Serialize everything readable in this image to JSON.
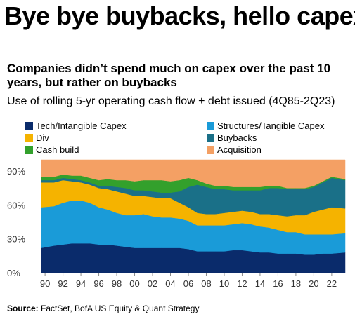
{
  "headline": "Bye bye buybacks, hello capex",
  "subtitle": "Companies didn’t spend much on capex over the past 10 years, but rather on buybacks",
  "source_label": "Source:",
  "source_text": " FactSet, BofA US Equity & Quant Strategy",
  "chart_data": {
    "type": "area",
    "title": "Use of rolling 5-yr operating cash flow + debt issued (4Q85-2Q23)",
    "xlabel": "",
    "ylabel": "",
    "stacked": true,
    "ylim": [
      0,
      100
    ],
    "yticks": [
      0,
      30,
      60,
      90
    ],
    "ytick_labels": [
      "0%",
      "30%",
      "60%",
      "90%"
    ],
    "xticks": [
      1990,
      1992,
      1994,
      1996,
      1998,
      2000,
      2002,
      2004,
      2006,
      2008,
      2010,
      2012,
      2014,
      2016,
      2018,
      2020,
      2022
    ],
    "xtick_labels": [
      "90",
      "92",
      "94",
      "96",
      "98",
      "00",
      "02",
      "04",
      "06",
      "08",
      "10",
      "12",
      "14",
      "16",
      "18",
      "20",
      "22"
    ],
    "xlim": [
      1989.6,
      2023.5
    ],
    "grid": false,
    "legend_position": "top",
    "x": [
      1989.6,
      1991,
      1992,
      1993,
      1994,
      1995,
      1996,
      1997,
      1998,
      1999,
      2000,
      2001,
      2002,
      2003,
      2004,
      2005,
      2006,
      2007,
      2008,
      2009,
      2010,
      2011,
      2012,
      2013,
      2014,
      2015,
      2016,
      2017,
      2018,
      2019,
      2020,
      2021,
      2022,
      2023.5
    ],
    "series": [
      {
        "name": "Tech/Intangible Capex",
        "color": "#0a2b6b",
        "values": [
          22,
          24,
          25,
          26,
          26,
          26,
          25,
          25,
          24,
          23,
          22,
          22,
          22,
          22,
          22,
          22,
          21,
          19,
          19,
          19,
          19,
          20,
          20,
          19,
          18,
          18,
          17,
          17,
          17,
          16,
          16,
          17,
          17,
          18
        ]
      },
      {
        "name": "Structures/Tangible Capex",
        "color": "#1a9bd8",
        "values": [
          36,
          35,
          37,
          38,
          38,
          36,
          33,
          31,
          29,
          28,
          29,
          30,
          28,
          27,
          27,
          26,
          25,
          23,
          23,
          23,
          23,
          23,
          24,
          24,
          23,
          22,
          21,
          19,
          19,
          18,
          18,
          17,
          17,
          17
        ]
      },
      {
        "name": "Div",
        "color": "#f5b300",
        "values": [
          22,
          21,
          20,
          17,
          16,
          16,
          17,
          18,
          19,
          19,
          17,
          16,
          17,
          17,
          17,
          14,
          12,
          11,
          10,
          10,
          11,
          11,
          11,
          11,
          11,
          12,
          13,
          14,
          15,
          17,
          20,
          22,
          24,
          22
        ]
      },
      {
        "name": "Buybacks",
        "color": "#1a7088",
        "values": [
          2,
          2,
          2,
          2,
          2,
          2,
          2,
          3,
          4,
          5,
          5,
          5,
          5,
          5,
          5,
          10,
          18,
          25,
          24,
          22,
          21,
          19,
          18,
          19,
          21,
          23,
          24,
          24,
          23,
          23,
          22,
          24,
          26,
          25
        ]
      },
      {
        "name": "Cash build",
        "color": "#33a02c",
        "values": [
          3,
          3,
          3,
          3,
          4,
          4,
          5,
          6,
          6,
          7,
          8,
          9,
          10,
          11,
          10,
          10,
          8,
          4,
          3,
          3,
          3,
          3,
          3,
          3,
          3,
          2,
          2,
          1,
          1,
          1,
          1,
          1,
          1,
          1
        ]
      },
      {
        "name": "Acquisition",
        "color": "#f4a064",
        "values": [
          15,
          15,
          13,
          14,
          14,
          16,
          18,
          17,
          18,
          18,
          19,
          18,
          18,
          18,
          19,
          18,
          16,
          18,
          21,
          23,
          23,
          24,
          24,
          24,
          24,
          23,
          23,
          25,
          25,
          25,
          23,
          19,
          15,
          17
        ]
      }
    ]
  }
}
